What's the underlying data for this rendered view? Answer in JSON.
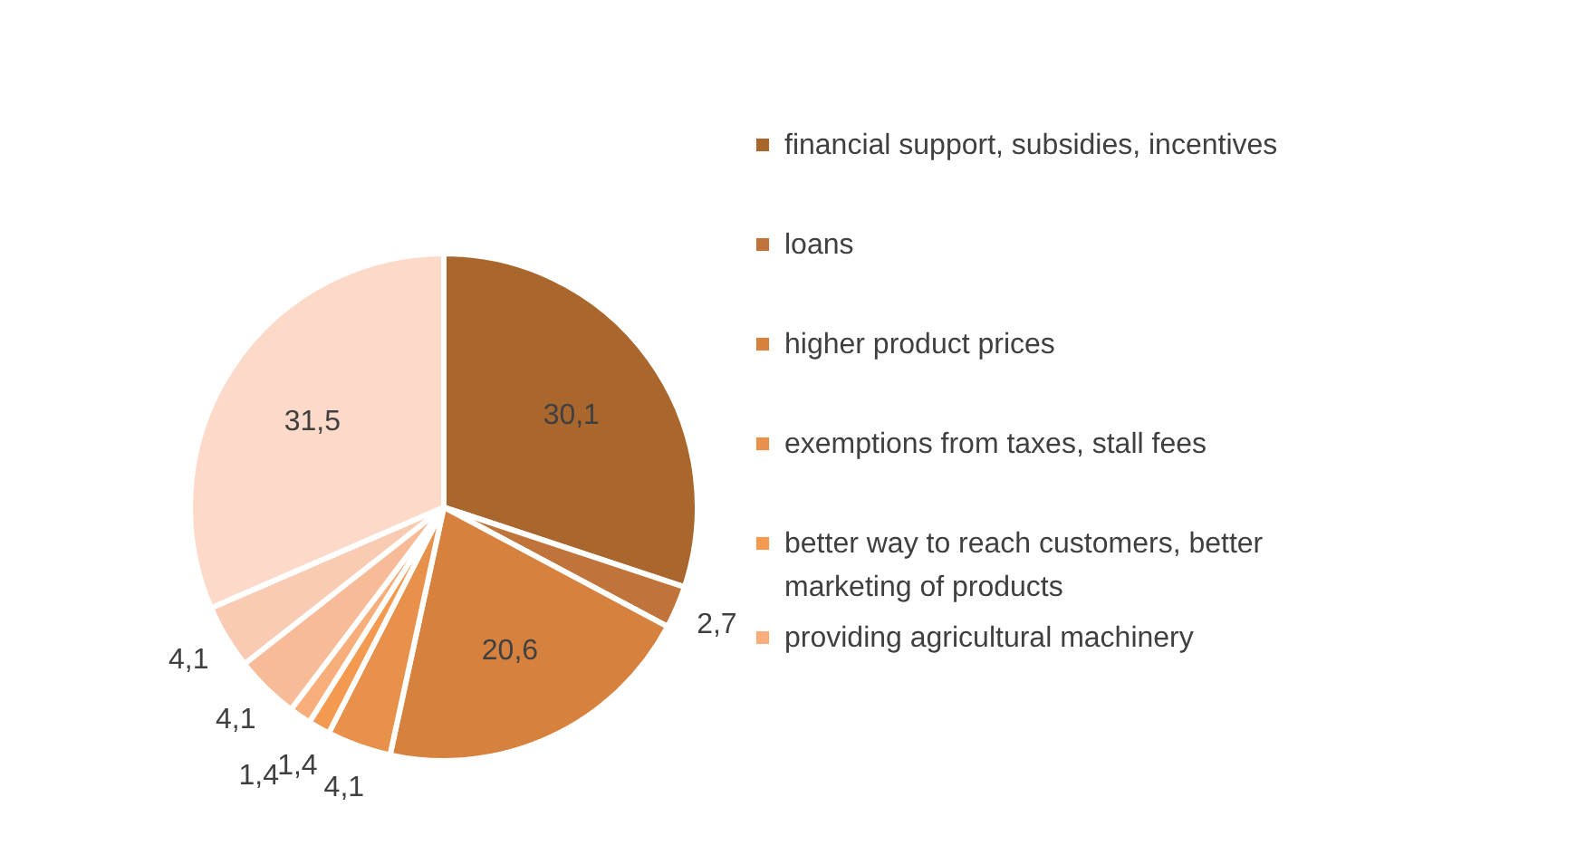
{
  "chart_data": {
    "type": "pie",
    "categories": [
      "financial support, subsidies, incentives",
      "loans",
      "higher product prices",
      "exemptions from taxes, stall fees",
      "better way to reach customers, better marketing of products",
      "providing agricultural machinery",
      null,
      null,
      null
    ],
    "values": [
      30.1,
      2.7,
      20.6,
      4.1,
      1.4,
      1.4,
      4.1,
      4.1,
      31.5
    ],
    "value_labels": [
      "30,1",
      "2,7",
      "20,6",
      "4,1",
      "1,4",
      "1,4",
      "4,1",
      "4,1",
      "31,5"
    ],
    "colors": [
      "#a9662d",
      "#c0733a",
      "#d6823e",
      "#e8914a",
      "#f39a50",
      "#f7ae7a",
      "#f8bb98",
      "#f9cbb3",
      "#fcd9c8"
    ],
    "legend": "right"
  }
}
